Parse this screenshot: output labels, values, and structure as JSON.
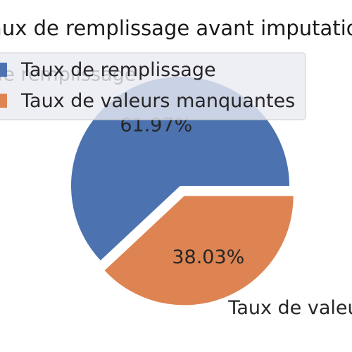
{
  "chart_data": {
    "type": "pie",
    "title": "Taux de remplissage avant imputation",
    "labels": [
      "Taux de remplissage",
      "Taux de valeurs manquantes"
    ],
    "values": [
      61.97,
      38.03
    ],
    "value_labels": [
      "61.97%",
      "38.03%"
    ],
    "colors": [
      "#4c72b0",
      "#dd8452"
    ],
    "explode": [
      0,
      0.1
    ],
    "legend_position": "upper-left"
  }
}
